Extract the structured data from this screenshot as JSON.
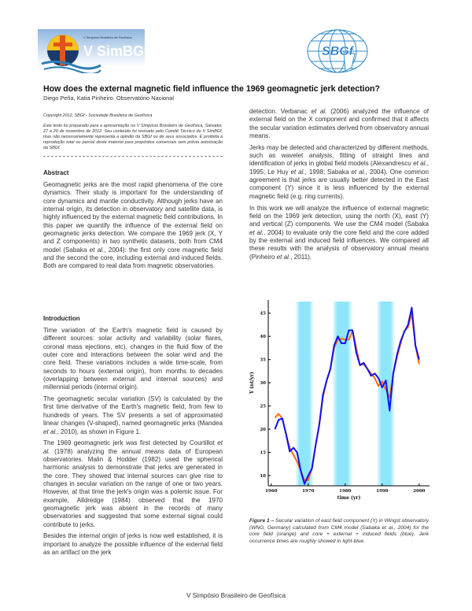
{
  "header": {
    "left_logo_text": "V Simpósio Brasileiro de Geofísica — V SimBGf",
    "right_logo_text": "SBGf",
    "title": "How does the external magnetic field influence the 1969 geomagnetic jerk detection?",
    "authors": "Diego Peña, Katia Pinheiro. Observatório Nacional",
    "copyright": "Copyright 2012, SBGf - Sociedade Brasileira de Geofísica",
    "notice": "Este texto foi preparado para a apresentação no V Simpósio Brasileiro de Geofísica, Salvador, 27 a 29 de novembro de 2012. Seu conteúdo foi revisado pelo Comitê Técnico do V SimBGf, mas não necessariamente representa a opinião da SBGf ou de seus associados. É proibida a reprodução total ou parcial deste material para propósitos comerciais sem prévia autorização da SBGf."
  },
  "abstract": {
    "heading": "Abstract",
    "paragraphs": [
      [
        {
          "t": "Geomagnetic jerks are the most rapid phenomena of the core dynamics. Their study is important for the understanding of core dynamics and mantle conductivity. Although jerks have an internal origin, its detection in observatory and satellite data, is highly influenced by the external magnetic field contributions. In this paper we quantify the influence of the external field on geomagnetic jerks detection. We compare the 1969 jerk (X, Y and Z components) in two synthetic datasets, both from CM4 model (Sabaka "
        },
        {
          "t": "et al.",
          "i": true
        },
        {
          "t": ", 2004): the first only core magnetic field and the second the core, including external and induced fields. Both are compared to real data from magnetic observatories."
        }
      ]
    ]
  },
  "introduction": {
    "heading": "Introduction",
    "paragraphs": [
      [
        {
          "t": "Time variation of the Earth's magnetic field is caused by different sources: solar activity and variability (solar flares, coronal mass ejections, etc), changes in the fluid flow of the outer core and interactions between the solar wind and the core field. These variations includes a wide time-scale, from seconds to hours (external origin), from months to decades (overlapping between external and internal sources) and millennial periods (internal origin)."
        }
      ],
      [
        {
          "t": "The geomagnetic secular variation (SV) is calculated by the first time derivative of the Earth's magnetic field, from few to hundreds of years. The SV presents a set of approximated linear changes (V-shaped), named geomagnetic jerks (Mandea "
        },
        {
          "t": "et al.",
          "i": true
        },
        {
          "t": ", 2010), as shown in Figure 1."
        }
      ],
      [
        {
          "t": "The 1969 geomagnetic jerk was first detected by Courtillot "
        },
        {
          "t": "et al.",
          "i": true
        },
        {
          "t": " (1978) analyzing the annual means data of European observatories. Malin & Hodder (1982) used the spherical harmonic analysis to demonstrate that jerks are generated in the core. They showed that internal sources can give rise to changes in secular variation on the range of one or two years. However, at that time the jerk's origin was a polemic issue. For example, Alldredge (1984) observed that the 1970 geomagnetic jerk was absent in the records of many observatories and suggested that some external signal could contribute to jerks."
        }
      ],
      [
        {
          "t": "Besides the internal origin of jerks is now well established, it is important to analyze the possible influence of the external field as an artifact on the jerk"
        }
      ]
    ]
  },
  "right_column": {
    "paragraphs": [
      [
        {
          "t": "detection. Verbanac "
        },
        {
          "t": "et al.",
          "i": true
        },
        {
          "t": " (2006) analyzed the influence of external field on the X component and confirmed that it affects the secular variation estimates derived from observatory annual means."
        }
      ],
      [
        {
          "t": "Jerks may be detected and characterized by different methods, such as wavelet analysis, fitting of straight lines and identification of jerks in global field models (Alexandrescu "
        },
        {
          "t": "et al.",
          "i": true
        },
        {
          "t": ", 1995; Le Huy "
        },
        {
          "t": "et al.",
          "i": true
        },
        {
          "t": ", 1998; Sabaka "
        },
        {
          "t": "et al.",
          "i": true
        },
        {
          "t": ", 2004). One common agreement is that jerks are usually better detected in the East component (Y) since it is less influenced by the external magnetic field (e.g. ring currents)."
        }
      ],
      [
        {
          "t": "In this work we will analyze the influence of external magnetic field on the 1969 jerk detection, using the north (X), east (Y) and vertical (Z) components. We use the CM4 model (Sabaka "
        },
        {
          "t": "et al.",
          "i": true
        },
        {
          "t": ", 2004) to evaluate only the core field and the core added by the external and induced field influences. We compared all these results with the analysis of observatory annual means (Pinheiro "
        },
        {
          "t": "et al.",
          "i": true
        },
        {
          "t": ", 2011)."
        }
      ]
    ]
  },
  "figure": {
    "caption_label": "Figure 1 –",
    "caption_text": " Secular variation of east field component (Y) in Wingst observatory (WNG, Germany) calculated from CM4 model (Sabaka et al., 2004) for the core field (orange) and core + external + induced fields (blue). Jerk occurrence times are roughly showed in light-blue."
  },
  "chart_data": {
    "type": "line",
    "xlabel": "time (yr)",
    "ylabel": "Y (nt/yr)",
    "xlim": [
      1959.2,
      2002.8
    ],
    "ylim": [
      7.8,
      47.5
    ],
    "xticks": [
      1960,
      1970,
      1980,
      1990,
      2000
    ],
    "yticks": [
      10,
      15,
      20,
      25,
      30,
      35,
      40,
      45
    ],
    "grid": false,
    "jerk_bands": [
      [
        1967.5,
        1970.5
      ],
      [
        1977.5,
        1981
      ],
      [
        1989.5,
        1992.5
      ]
    ],
    "x": [
      1961,
      1962,
      1963,
      1964,
      1965,
      1966,
      1967,
      1968,
      1969,
      1970,
      1971,
      1972,
      1973,
      1974,
      1975,
      1976,
      1977,
      1978,
      1979,
      1980,
      1981,
      1982,
      1983,
      1984,
      1985,
      1986,
      1987,
      1988,
      1989,
      1990,
      1991,
      1992,
      1993,
      1994,
      1995,
      1996,
      1997,
      1998,
      1999,
      2000
    ],
    "series": [
      {
        "color": "#1010ee",
        "values": [
          20,
          22,
          22.3,
          19,
          15.2,
          16,
          15,
          11,
          8.2,
          10,
          11.5,
          16.5,
          21,
          27.5,
          30.5,
          33,
          38,
          40,
          38.5,
          38.5,
          41.3,
          41.3,
          36.5,
          33.8,
          34.3,
          33,
          31.5,
          32,
          31,
          29,
          30.5,
          24,
          32,
          36,
          39,
          41,
          42.5,
          46.2,
          38,
          35
        ]
      },
      {
        "color": "#ff6a10",
        "values": [
          22.5,
          23.3,
          22.3,
          19,
          16,
          14.5,
          13,
          11,
          9,
          9,
          11.5,
          16.5,
          21,
          27,
          30.5,
          33,
          37.5,
          39.3,
          39.5,
          39.3,
          39.3,
          41.2,
          37.5,
          33.8,
          34,
          33,
          32,
          31,
          29.3,
          30.3,
          28.5,
          26.8,
          32,
          35.5,
          38.5,
          41.2,
          42,
          45,
          38,
          34
        ]
      }
    ],
    "band_color": "#8fe6fb"
  },
  "footer": {
    "text": "V Simpósio Brasileiro de Geofísica"
  }
}
